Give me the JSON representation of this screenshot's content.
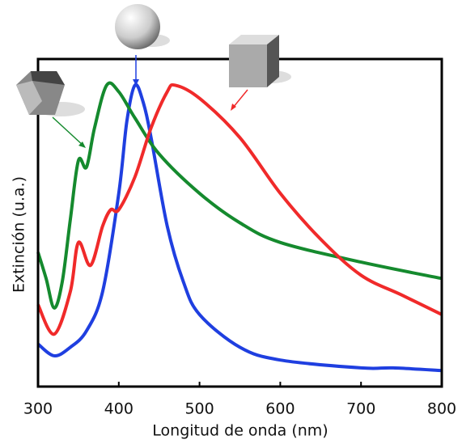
{
  "chart_data": {
    "type": "line",
    "x_label": "Longitud de onda (nm)",
    "y_label": "Extinción (u.a.)",
    "xlim": [
      300,
      800
    ],
    "xticks": [
      300,
      400,
      500,
      600,
      700,
      800
    ],
    "ylim": [
      0,
      1
    ],
    "series": [
      {
        "color": "#1f3fe0",
        "x": [
          300,
          320,
          340,
          360,
          380,
          400,
          410,
          420,
          430,
          440,
          460,
          480,
          500,
          550,
          600,
          700,
          740,
          800
        ],
        "values": [
          0.13,
          0.094,
          0.12,
          0.17,
          0.29,
          0.59,
          0.81,
          0.92,
          0.87,
          0.76,
          0.49,
          0.32,
          0.22,
          0.12,
          0.081,
          0.057,
          0.057,
          0.049
        ]
      },
      {
        "color": "#158a2e",
        "x": [
          300,
          310,
          320,
          330,
          340,
          350,
          360,
          370,
          385,
          400,
          420,
          450,
          500,
          550,
          600,
          700,
          800
        ],
        "values": [
          0.41,
          0.33,
          0.24,
          0.32,
          0.51,
          0.69,
          0.67,
          0.79,
          0.92,
          0.9,
          0.82,
          0.71,
          0.59,
          0.5,
          0.44,
          0.38,
          0.33
        ]
      },
      {
        "color": "#f02a2a",
        "x": [
          300,
          320,
          340,
          350,
          365,
          380,
          390,
          400,
          420,
          440,
          460,
          470,
          500,
          550,
          600,
          650,
          700,
          750,
          800
        ],
        "values": [
          0.25,
          0.16,
          0.29,
          0.44,
          0.37,
          0.49,
          0.54,
          0.54,
          0.64,
          0.79,
          0.9,
          0.92,
          0.88,
          0.76,
          0.59,
          0.45,
          0.34,
          0.28,
          0.22
        ]
      }
    ]
  }
}
